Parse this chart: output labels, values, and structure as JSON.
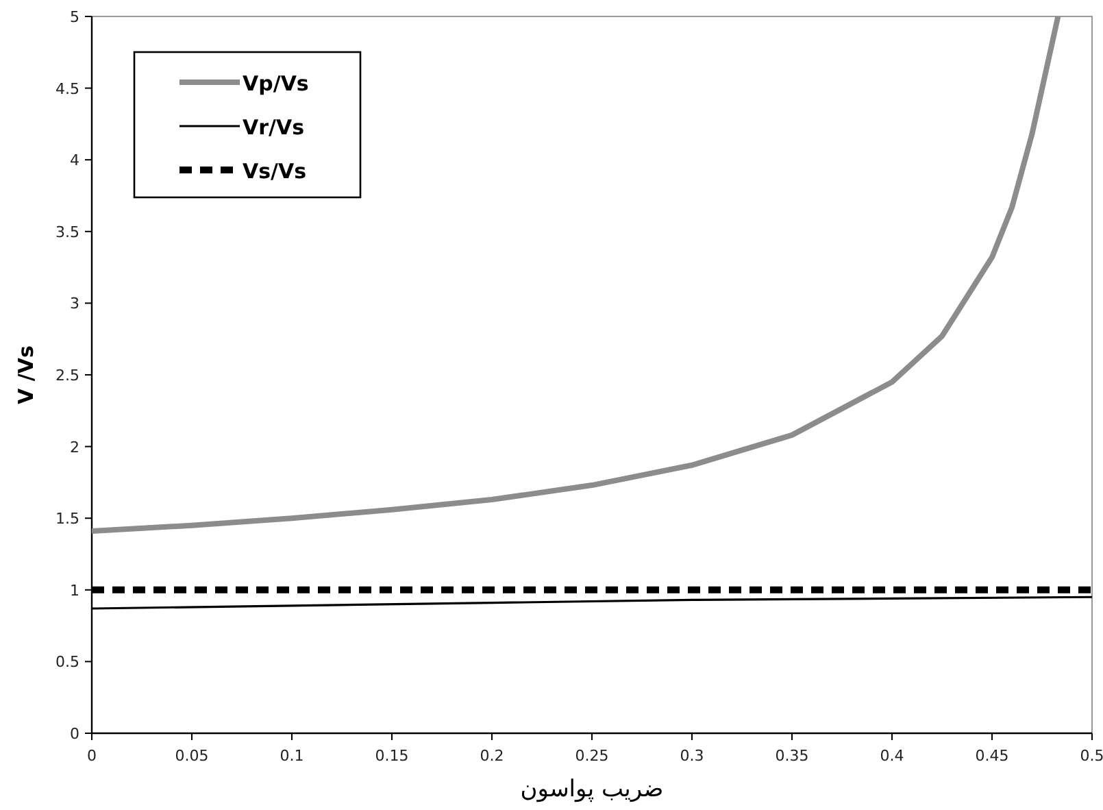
{
  "chart_data": {
    "type": "line",
    "xlabel": "ضریب پواسون",
    "ylabel": "V /Vs",
    "x": [
      0,
      0.05,
      0.1,
      0.15,
      0.2,
      0.25,
      0.3,
      0.35,
      0.4,
      0.425,
      0.45,
      0.46,
      0.47,
      0.483
    ],
    "series": [
      {
        "name": "Vp/Vs",
        "color": "#8c8c8c",
        "line_style": "solid",
        "values": [
          1.41,
          1.45,
          1.5,
          1.56,
          1.63,
          1.73,
          1.87,
          2.08,
          2.45,
          2.77,
          3.32,
          3.67,
          4.18,
          5.0
        ]
      },
      {
        "name": "Vr/Vs",
        "color": "#000000",
        "line_style": "solid",
        "x": [
          0,
          0.1,
          0.2,
          0.3,
          0.4,
          0.5
        ],
        "values": [
          0.87,
          0.89,
          0.91,
          0.93,
          0.94,
          0.95
        ]
      },
      {
        "name": "Vs/Vs",
        "color": "#000000",
        "line_style": "dashed",
        "x": [
          0,
          0.5
        ],
        "values": [
          1,
          1
        ]
      }
    ],
    "xlim": [
      0,
      0.5
    ],
    "xticks": [
      0,
      0.05,
      0.1,
      0.15,
      0.2,
      0.25,
      0.3,
      0.35,
      0.4,
      0.45,
      0.5
    ],
    "ylim": [
      0,
      5
    ],
    "yticks": [
      0,
      0.5,
      1,
      1.5,
      2,
      2.5,
      3,
      3.5,
      4,
      4.5,
      5
    ],
    "grid": false,
    "legend": "top left",
    "marker": "none"
  }
}
